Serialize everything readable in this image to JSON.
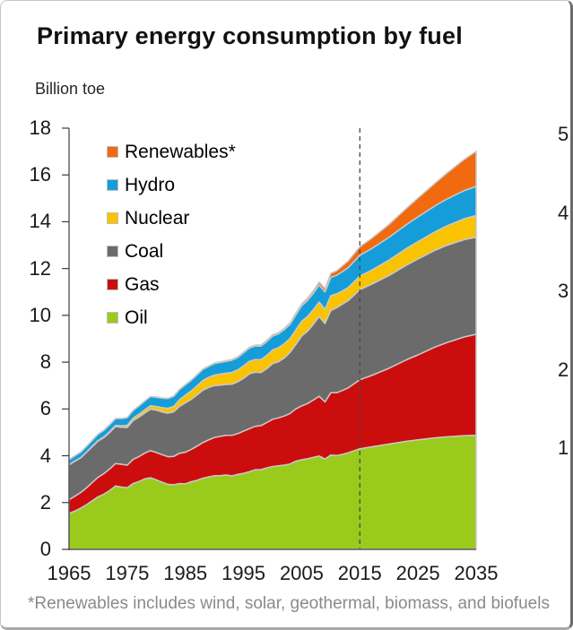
{
  "title": "Primary energy consumption by fuel",
  "unit_label": "Billion toe",
  "footnote": "*Renewables includes wind, solar, geothermal, biomass, and biofuels",
  "colors": {
    "axis": "#3c3c3c",
    "baseline": "#7a7a7a",
    "dashed_line": "#4a4a4a",
    "band_stroke": "#c8c8c8",
    "title_text": "#111111",
    "footnote_text": "#8a8a8a"
  },
  "chart_data": {
    "type": "area",
    "stacked": true,
    "title": "Primary energy consumption by fuel",
    "ylabel": "Billion toe",
    "xlim": [
      1965,
      2035
    ],
    "ylim": [
      0,
      18
    ],
    "grid": false,
    "legend_position": "top-left-inside",
    "y_axis_ticks": [
      0,
      2,
      4,
      6,
      8,
      10,
      12,
      14,
      16,
      18
    ],
    "x_axis_ticks": [
      1965,
      1975,
      1985,
      1995,
      2005,
      2015,
      2025,
      2035
    ],
    "right_axis_ticks_partial": [
      "5",
      "4",
      "3",
      "2",
      "1"
    ],
    "annotation_line_year": 2015,
    "x": [
      1965,
      1966,
      1967,
      1968,
      1969,
      1970,
      1971,
      1972,
      1973,
      1974,
      1975,
      1976,
      1977,
      1978,
      1979,
      1980,
      1981,
      1982,
      1983,
      1984,
      1985,
      1986,
      1987,
      1988,
      1989,
      1990,
      1991,
      1992,
      1993,
      1994,
      1995,
      1996,
      1997,
      1998,
      1999,
      2000,
      2001,
      2002,
      2003,
      2004,
      2005,
      2006,
      2007,
      2008,
      2009,
      2010,
      2011,
      2012,
      2013,
      2015,
      2017,
      2020,
      2023,
      2025,
      2028,
      2030,
      2033,
      2035
    ],
    "series": [
      {
        "name": "Oil",
        "color": "#9aca1c",
        "values": [
          1.53,
          1.64,
          1.76,
          1.91,
          2.08,
          2.25,
          2.36,
          2.52,
          2.71,
          2.66,
          2.63,
          2.81,
          2.9,
          3.01,
          3.06,
          2.97,
          2.87,
          2.78,
          2.76,
          2.81,
          2.8,
          2.89,
          2.95,
          3.04,
          3.1,
          3.15,
          3.15,
          3.18,
          3.14,
          3.2,
          3.25,
          3.32,
          3.4,
          3.41,
          3.48,
          3.54,
          3.57,
          3.6,
          3.65,
          3.77,
          3.83,
          3.87,
          3.93,
          3.99,
          3.86,
          4.03,
          4.01,
          4.06,
          4.13,
          4.3,
          4.38,
          4.5,
          4.62,
          4.68,
          4.77,
          4.81,
          4.86,
          4.88
        ]
      },
      {
        "name": "Gas",
        "color": "#cc0d0d",
        "values": [
          0.59,
          0.63,
          0.67,
          0.72,
          0.78,
          0.83,
          0.88,
          0.92,
          0.96,
          0.98,
          0.97,
          1.03,
          1.06,
          1.1,
          1.16,
          1.17,
          1.18,
          1.18,
          1.21,
          1.3,
          1.35,
          1.38,
          1.46,
          1.52,
          1.58,
          1.63,
          1.68,
          1.69,
          1.73,
          1.75,
          1.8,
          1.84,
          1.86,
          1.88,
          1.94,
          2.02,
          2.05,
          2.1,
          2.16,
          2.23,
          2.3,
          2.36,
          2.45,
          2.55,
          2.44,
          2.66,
          2.68,
          2.73,
          2.77,
          2.95,
          3.05,
          3.24,
          3.48,
          3.63,
          3.88,
          4.03,
          4.22,
          4.31
        ]
      },
      {
        "name": "Coal",
        "color": "#6b6b6b",
        "values": [
          1.49,
          1.5,
          1.48,
          1.52,
          1.53,
          1.55,
          1.54,
          1.56,
          1.58,
          1.58,
          1.61,
          1.66,
          1.69,
          1.71,
          1.77,
          1.81,
          1.82,
          1.86,
          1.91,
          2.0,
          2.11,
          2.14,
          2.19,
          2.24,
          2.24,
          2.22,
          2.19,
          2.18,
          2.19,
          2.21,
          2.26,
          2.34,
          2.31,
          2.27,
          2.3,
          2.38,
          2.4,
          2.48,
          2.61,
          2.76,
          2.99,
          3.09,
          3.24,
          3.41,
          3.35,
          3.52,
          3.63,
          3.69,
          3.73,
          3.85,
          3.9,
          3.96,
          4.05,
          4.1,
          4.14,
          4.16,
          4.16,
          4.15
        ]
      },
      {
        "name": "Nuclear",
        "color": "#f9c302",
        "values": [
          0.01,
          0.01,
          0.01,
          0.01,
          0.02,
          0.02,
          0.03,
          0.04,
          0.05,
          0.06,
          0.09,
          0.1,
          0.12,
          0.14,
          0.15,
          0.16,
          0.19,
          0.21,
          0.23,
          0.28,
          0.33,
          0.36,
          0.39,
          0.42,
          0.43,
          0.45,
          0.47,
          0.48,
          0.5,
          0.51,
          0.53,
          0.54,
          0.54,
          0.55,
          0.57,
          0.58,
          0.6,
          0.61,
          0.6,
          0.62,
          0.63,
          0.63,
          0.62,
          0.62,
          0.61,
          0.63,
          0.6,
          0.56,
          0.56,
          0.58,
          0.6,
          0.66,
          0.71,
          0.74,
          0.79,
          0.83,
          0.89,
          0.93
        ]
      },
      {
        "name": "Hydro",
        "color": "#149dd9",
        "values": [
          0.21,
          0.22,
          0.23,
          0.24,
          0.25,
          0.27,
          0.28,
          0.29,
          0.29,
          0.31,
          0.33,
          0.33,
          0.35,
          0.37,
          0.39,
          0.39,
          0.4,
          0.41,
          0.43,
          0.44,
          0.44,
          0.45,
          0.46,
          0.47,
          0.47,
          0.49,
          0.5,
          0.5,
          0.52,
          0.53,
          0.56,
          0.56,
          0.58,
          0.58,
          0.59,
          0.6,
          0.59,
          0.6,
          0.6,
          0.64,
          0.66,
          0.69,
          0.7,
          0.73,
          0.74,
          0.78,
          0.79,
          0.83,
          0.85,
          0.89,
          0.92,
          0.97,
          1.02,
          1.06,
          1.11,
          1.15,
          1.21,
          1.24
        ]
      },
      {
        "name": "Renewables*",
        "color": "#f26a10",
        "values": [
          0,
          0,
          0,
          0,
          0,
          0,
          0,
          0,
          0,
          0,
          0,
          0,
          0,
          0,
          0,
          0.01,
          0.01,
          0.01,
          0.01,
          0.01,
          0.01,
          0.01,
          0.01,
          0.01,
          0.02,
          0.02,
          0.02,
          0.03,
          0.03,
          0.03,
          0.03,
          0.04,
          0.04,
          0.04,
          0.05,
          0.05,
          0.05,
          0.06,
          0.06,
          0.07,
          0.08,
          0.09,
          0.11,
          0.12,
          0.14,
          0.17,
          0.19,
          0.24,
          0.28,
          0.36,
          0.43,
          0.55,
          0.69,
          0.8,
          0.97,
          1.1,
          1.33,
          1.5
        ]
      }
    ]
  }
}
